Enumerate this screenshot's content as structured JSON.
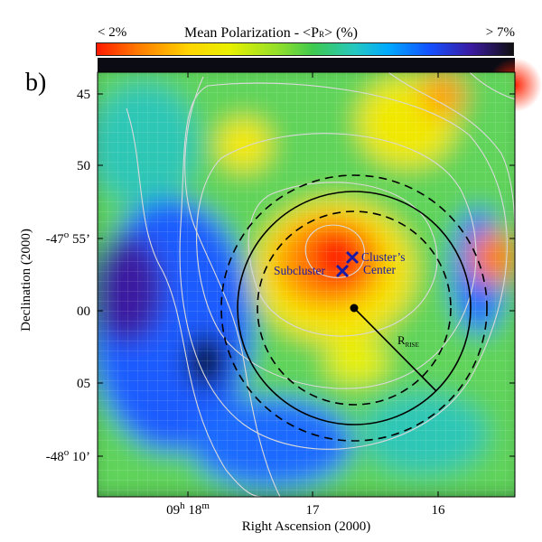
{
  "chart_data": {
    "type": "heatmap",
    "panel_label": "b)",
    "colorbar": {
      "title": "Mean Polarization - <P",
      "title_sub": "R",
      "title_end": "> (%)",
      "min_label": "< 2%",
      "max_label": "> 7%",
      "range": [
        2,
        7
      ],
      "colors": [
        "#ff1a00",
        "#ff7b00",
        "#ffd400",
        "#e8f000",
        "#8ede2c",
        "#3ec94f",
        "#24c7c0",
        "#00a9ff",
        "#1450ff",
        "#3a1aa0",
        "#101010"
      ]
    },
    "xaxis": {
      "label": "Right Ascension (2000)",
      "ticks": [
        {
          "pre": "09",
          "sup1": "h",
          "mid": " 18",
          "sup2": "m"
        },
        {
          "pre": "17"
        },
        {
          "pre": "16"
        }
      ]
    },
    "yaxis": {
      "label": "Declination (2000)",
      "ticks": [
        {
          "pre": "45"
        },
        {
          "pre": "50"
        },
        {
          "pre": "-47",
          "sup1": "o",
          "mid": " 55’"
        },
        {
          "pre": "00"
        },
        {
          "pre": "05"
        },
        {
          "pre": "-48",
          "sup1": "o",
          "mid": " 10’"
        }
      ]
    },
    "annotations": {
      "cluster_center": "Cluster’s\nCenter",
      "subcluster": "Subcluster",
      "radius": "R",
      "radius_sub": "RISE"
    },
    "legend": "none",
    "grid": true
  }
}
